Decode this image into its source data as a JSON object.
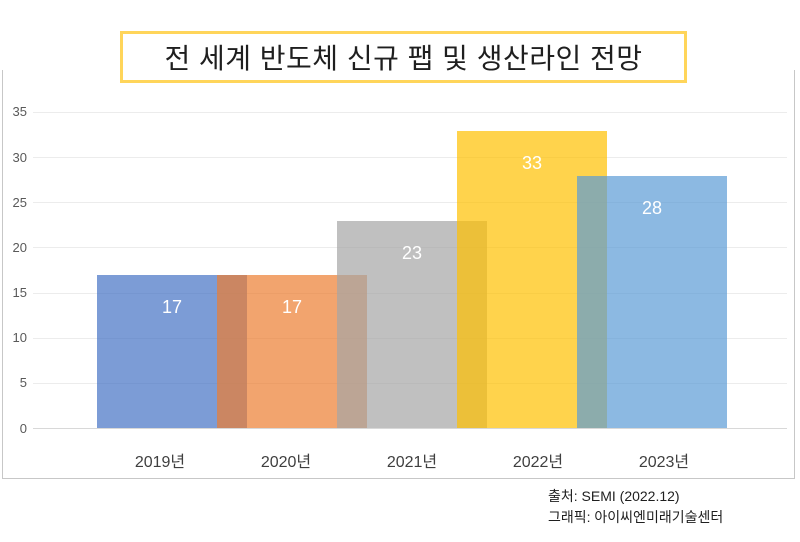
{
  "title": "전 세계 반도체 신규 팹 및 생산라인 전망",
  "chart_data": {
    "type": "bar",
    "title": "전 세계 반도체 신규 팹 및 생산라인 전망",
    "categories": [
      "2019년",
      "2020년",
      "2021년",
      "2022년",
      "2023년"
    ],
    "values": [
      17,
      17,
      23,
      33,
      28
    ],
    "bar_colors": [
      "#4472C4",
      "#ED7D31",
      "#A5A5A5",
      "#FFC000",
      "#5B9BD5"
    ],
    "bar_opacity": 0.7,
    "data_labels": [
      "17",
      "17",
      "23",
      "33",
      "28"
    ],
    "data_label_color": "#FFFFFF",
    "xlabel": "",
    "ylabel": "",
    "ylim": [
      0,
      35
    ],
    "yticks": [
      0,
      5,
      10,
      15,
      20,
      25,
      30,
      35
    ],
    "grid": true,
    "legend": "none"
  },
  "styles": {
    "title_border_color": "#FFD55A",
    "frame_color": "#C7C7C7",
    "gridline_color": "#ECECEC",
    "baseline_color": "#D8D8D8",
    "y_axis_text_color": "#595959",
    "x_axis_text_color": "#3F3F3F"
  },
  "credits": {
    "source": "출처: SEMI (2022.12)",
    "graphic": "그래픽: 아이씨엔미래기술센터"
  }
}
